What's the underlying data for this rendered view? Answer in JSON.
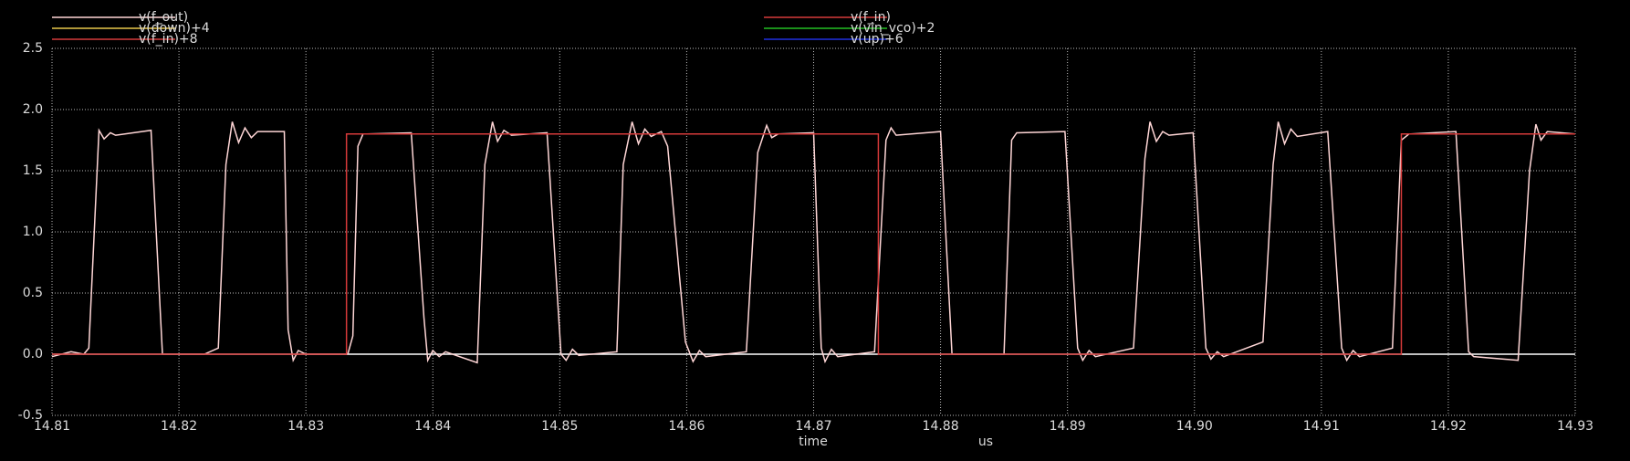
{
  "chart_data": {
    "type": "line",
    "x_label": "time",
    "x_unit": "us",
    "xlim": [
      14.81,
      14.93
    ],
    "xticks": [
      14.81,
      14.82,
      14.83,
      14.84,
      14.85,
      14.86,
      14.87,
      14.88,
      14.89,
      {
        "value": 14.9,
        "label": "14.90"
      },
      14.91,
      14.92,
      14.93
    ],
    "ylim": [
      -0.5,
      2.5
    ],
    "yticks": [
      -0.5,
      {
        "value": 0,
        "label": "0.0"
      },
      0.5,
      {
        "value": 1,
        "label": "1.0"
      },
      1.5,
      {
        "value": 2,
        "label": "2.0"
      },
      2.5
    ],
    "grid": true,
    "zero_line": true,
    "series": [
      {
        "name": "v(f_out)",
        "color": "#ffd6d6",
        "x": [
          14.81,
          14.8115,
          14.8125,
          14.8129,
          14.8137,
          14.8141,
          14.8146,
          14.815,
          14.8178,
          14.8187,
          14.822,
          14.8231,
          14.8237,
          14.8242,
          14.8247,
          14.8252,
          14.8257,
          14.8262,
          14.8283,
          14.8286,
          14.829,
          14.8294,
          14.83,
          14.8333,
          14.8337,
          14.8341,
          14.8345,
          14.8383,
          14.8393,
          14.8396,
          14.84,
          14.8405,
          14.841,
          14.8435,
          14.8441,
          14.8447,
          14.8451,
          14.8456,
          14.8462,
          14.849,
          14.8501,
          14.8505,
          14.851,
          14.8515,
          14.8545,
          14.855,
          14.8557,
          14.8562,
          14.8567,
          14.8572,
          14.858,
          14.8585,
          14.8599,
          14.8605,
          14.861,
          14.8615,
          14.8647,
          14.8656,
          14.8663,
          14.8667,
          14.8672,
          14.87,
          14.8706,
          14.8709,
          14.8714,
          14.8719,
          14.8748,
          14.8757,
          14.8761,
          14.8765,
          14.88,
          14.8809,
          14.885,
          14.8856,
          14.886,
          14.8898,
          14.8908,
          14.8912,
          14.8917,
          14.8922,
          14.8952,
          14.8961,
          14.8965,
          14.897,
          14.8975,
          14.898,
          14.8999,
          14.9009,
          14.9013,
          14.9018,
          14.9023,
          14.9054,
          14.9062,
          14.9066,
          14.9071,
          14.9076,
          14.9081,
          14.9105,
          14.9116,
          14.912,
          14.9125,
          14.913,
          14.9156,
          14.9163,
          14.9169,
          14.9206,
          14.9216,
          14.922,
          14.9255,
          14.9264,
          14.9269,
          14.9273,
          14.9278,
          14.93
        ],
        "values": [
          -0.02,
          0.02,
          0,
          0.05,
          1.83,
          1.76,
          1.81,
          1.79,
          1.83,
          0,
          0,
          0.05,
          1.55,
          1.9,
          1.73,
          1.85,
          1.77,
          1.82,
          1.82,
          0.2,
          -0.05,
          0.03,
          0,
          0,
          0.15,
          1.7,
          1.8,
          1.81,
          0.3,
          -0.05,
          0.03,
          -0.02,
          0.02,
          -0.07,
          1.55,
          1.9,
          1.74,
          1.83,
          1.79,
          1.81,
          0,
          -0.05,
          0.04,
          -0.01,
          0.02,
          1.55,
          1.9,
          1.72,
          1.84,
          1.78,
          1.82,
          1.7,
          0.1,
          -0.06,
          0.03,
          -0.02,
          0.02,
          1.65,
          1.87,
          1.77,
          1.8,
          1.81,
          0.05,
          -0.06,
          0.04,
          -0.02,
          0.02,
          1.75,
          1.85,
          1.79,
          1.82,
          0,
          0,
          1.75,
          1.81,
          1.82,
          0.05,
          -0.05,
          0.03,
          -0.02,
          0.05,
          1.6,
          1.9,
          1.74,
          1.82,
          1.79,
          1.81,
          0.05,
          -0.04,
          0.02,
          -0.02,
          0.1,
          1.55,
          1.9,
          1.72,
          1.84,
          1.78,
          1.82,
          0.05,
          -0.05,
          0.03,
          -0.02,
          0.05,
          1.75,
          1.8,
          1.82,
          0.02,
          -0.02,
          -0.05,
          1.5,
          1.88,
          1.75,
          1.82,
          1.8
        ]
      },
      {
        "name": "v(down)+4",
        "color": "#e8c84a"
      },
      {
        "name": "v(f_in)+8",
        "color": "#d63a3a"
      },
      {
        "name": "v(f_in)",
        "color": "#d63a3a",
        "x": [
          14.81,
          14.8332,
          14.8332,
          14.8751,
          14.8751,
          14.9163,
          14.9163,
          14.93
        ],
        "values": [
          0,
          0,
          1.8,
          1.8,
          0,
          0,
          1.8,
          1.8
        ]
      },
      {
        "name": "v(vin_vco)+2",
        "color": "#22c022"
      },
      {
        "name": "v(up)+6",
        "color": "#2030e0"
      }
    ]
  }
}
